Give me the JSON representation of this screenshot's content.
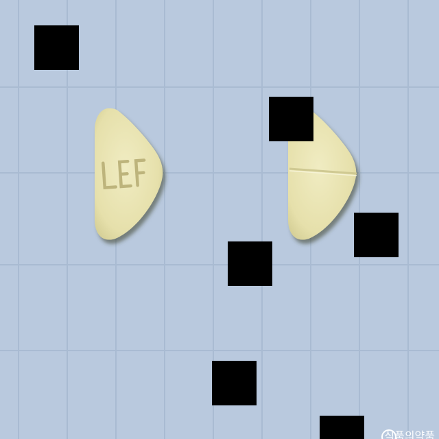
{
  "scene": {
    "background_color": "#b9c9de",
    "grid_color": "#a9bbd2",
    "pill_color": "#e9e4b4"
  },
  "pills": [
    {
      "side": "front",
      "imprint": "LEF"
    },
    {
      "side": "back",
      "score_line": true
    }
  ],
  "watermark": {
    "text": "식품의약품"
  }
}
